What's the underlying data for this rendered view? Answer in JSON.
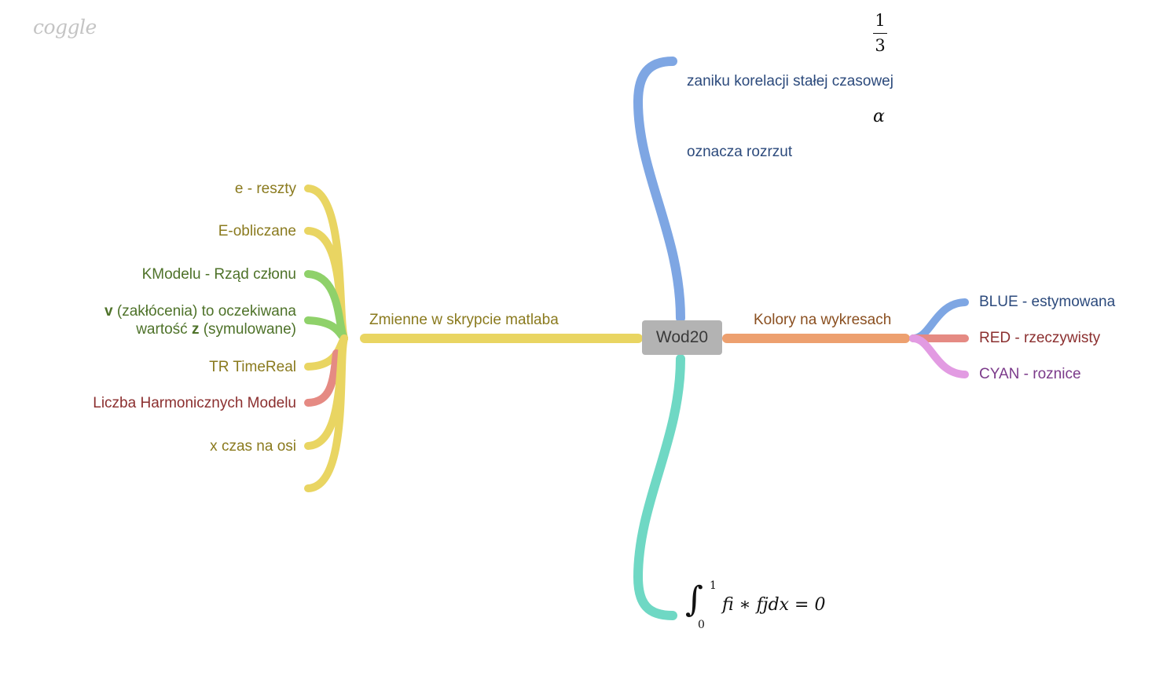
{
  "logo": "coggle",
  "center": {
    "label": "Wod20"
  },
  "branches": {
    "left_hub": {
      "label": "Zmienne w skrypcie matlaba"
    },
    "left_items": [
      {
        "id": "reszty",
        "label": "e - reszty"
      },
      {
        "id": "obliczane",
        "label": "E-obliczane"
      },
      {
        "id": "kmodelu",
        "label": "KModelu - Rząd członu"
      },
      {
        "id": "v_line1_bold",
        "label": "v"
      },
      {
        "id": "v_line1_rest",
        "label": " (zakłócenia) to oczekiwana"
      },
      {
        "id": "v_line2_start",
        "label": "wartość "
      },
      {
        "id": "v_line2_bold",
        "label": "z"
      },
      {
        "id": "v_line2_rest",
        "label": " (symulowane)"
      },
      {
        "id": "timereal",
        "label": "TR TimeReal"
      },
      {
        "id": "harmonicznych",
        "label": "Liczba Harmonicznych Modelu"
      },
      {
        "id": "czas",
        "label": "x czas na osi"
      }
    ],
    "top_items": [
      {
        "label": "zaniku korelacji stałej czasowej"
      },
      {
        "label": "oznacza rozrzut"
      }
    ],
    "top_math": {
      "frac_num": "1",
      "frac_den": "3",
      "alpha": "α"
    },
    "bottom_math": {
      "integral": "∫",
      "upper": "1",
      "lower": "0",
      "expression": "fi ∗ fjdx = 0"
    },
    "right_hub": {
      "label": "Kolory na wykresach"
    },
    "right_items": [
      {
        "label": "BLUE - estymowana"
      },
      {
        "label": "RED - rzeczywisty"
      },
      {
        "label": "CYAN - roznice"
      }
    ]
  },
  "colors": {
    "yellow": "#e9d562",
    "green": "#8fd16a",
    "red": "#e58a83",
    "blue": "#7ea6e3",
    "teal": "#6fd8c4",
    "orange": "#eda06f",
    "pink": "#e29be2",
    "center_bg": "#b3b3b3"
  }
}
